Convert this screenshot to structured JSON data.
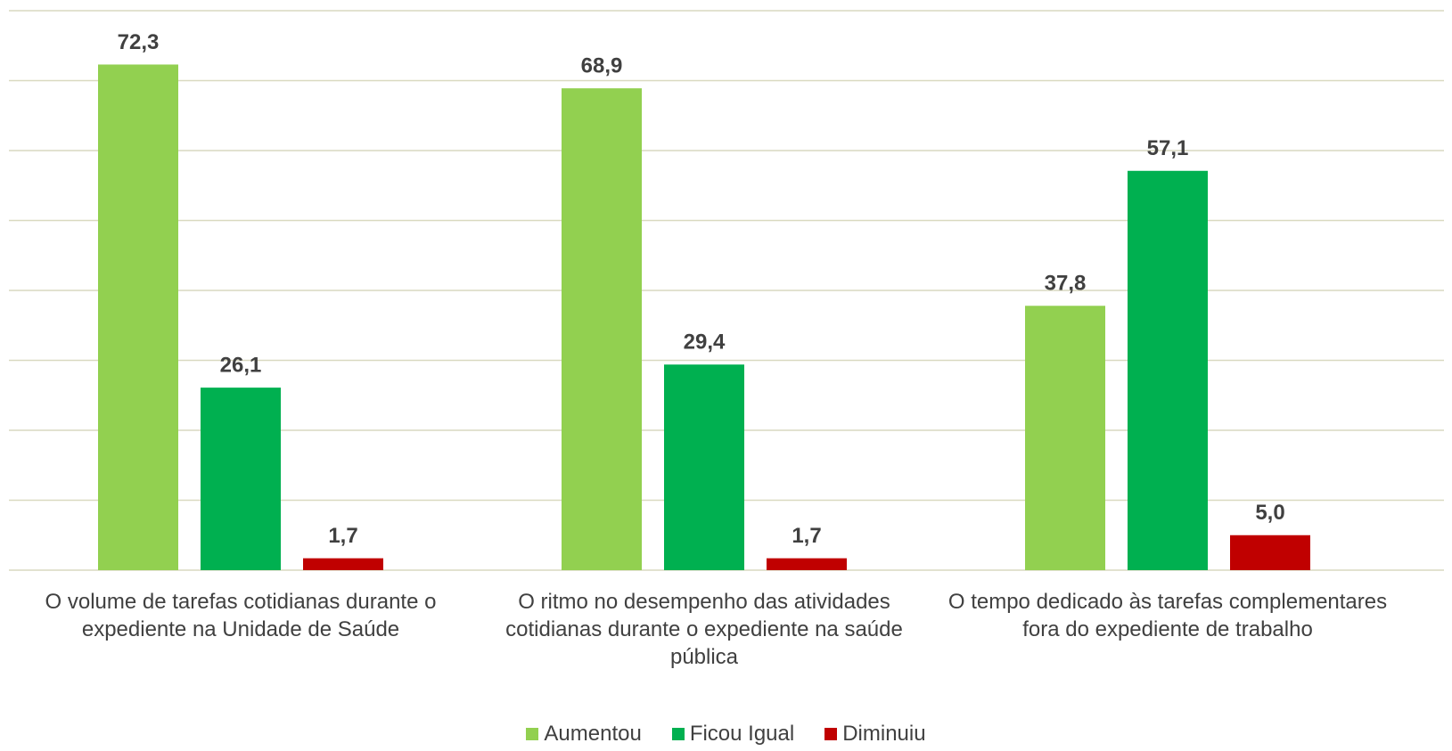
{
  "chart_data": {
    "type": "bar",
    "categories": [
      "O volume de tarefas cotidianas durante o expediente na Unidade de Saúde",
      "O ritmo no desempenho das atividades cotidianas durante o expediente na saúde pública",
      "O tempo dedicado às tarefas complementares fora do expediente de trabalho"
    ],
    "series": [
      {
        "name": "Aumentou",
        "color": "#92d050",
        "values": [
          72.3,
          68.9,
          37.8
        ],
        "value_labels": [
          "72,3",
          "68,9",
          "37,8"
        ]
      },
      {
        "name": "Ficou Igual",
        "color": "#00b050",
        "values": [
          26.1,
          29.4,
          57.1
        ],
        "value_labels": [
          "26,1",
          "29,4",
          "57,1"
        ]
      },
      {
        "name": "Diminuiu",
        "color": "#c00000",
        "values": [
          1.7,
          1.7,
          5.0
        ],
        "value_labels": [
          "1,7",
          "1,7",
          "5,0"
        ]
      }
    ],
    "ylim": [
      0,
      80
    ],
    "yticks": [
      0,
      10,
      20,
      30,
      40,
      50,
      60,
      70,
      80
    ],
    "grid": true,
    "legend": "bottom"
  }
}
